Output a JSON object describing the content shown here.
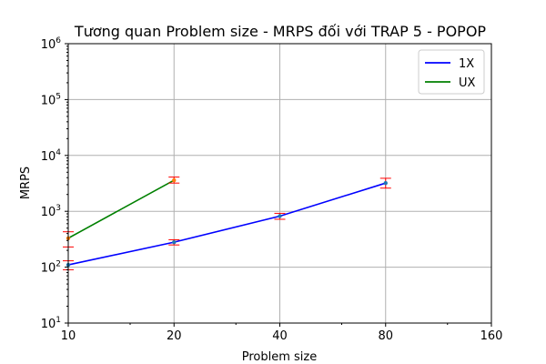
{
  "chart_data": {
    "type": "line",
    "title": "Tương quan Problem size - MRPS đối với TRAP 5 - POPOP",
    "xlabel": "Problem size",
    "ylabel": "MRPS",
    "xscale": "log2",
    "yscale": "log10",
    "xlim": [
      10,
      160
    ],
    "ylim": [
      10,
      1000000
    ],
    "xticks": [
      10,
      20,
      40,
      80,
      160
    ],
    "xtick_labels": [
      "10",
      "20",
      "40",
      "80",
      "160"
    ],
    "yticks": [
      10,
      100,
      1000,
      10000,
      100000,
      1000000
    ],
    "ytick_labels": [
      {
        "base": "10",
        "exp": "1"
      },
      {
        "base": "10",
        "exp": "2"
      },
      {
        "base": "10",
        "exp": "3"
      },
      {
        "base": "10",
        "exp": "4"
      },
      {
        "base": "10",
        "exp": "5"
      },
      {
        "base": "10",
        "exp": "6"
      }
    ],
    "grid": true,
    "legend_position": "top-right",
    "series": [
      {
        "name": "1X",
        "color": "#0000ff",
        "marker_color": "#1f77b4",
        "x": [
          10,
          20,
          40,
          80
        ],
        "y": [
          110,
          280,
          820,
          3200
        ],
        "err_low": [
          90,
          250,
          720,
          2600
        ],
        "err_high": [
          130,
          310,
          920,
          3900
        ]
      },
      {
        "name": "UX",
        "color": "#008000",
        "marker_color": "#ff7f0e",
        "x": [
          10,
          20
        ],
        "y": [
          330,
          3600
        ],
        "err_low": [
          230,
          3200
        ],
        "err_high": [
          430,
          4100
        ]
      }
    ],
    "errorbar_color": "#ff0000"
  }
}
